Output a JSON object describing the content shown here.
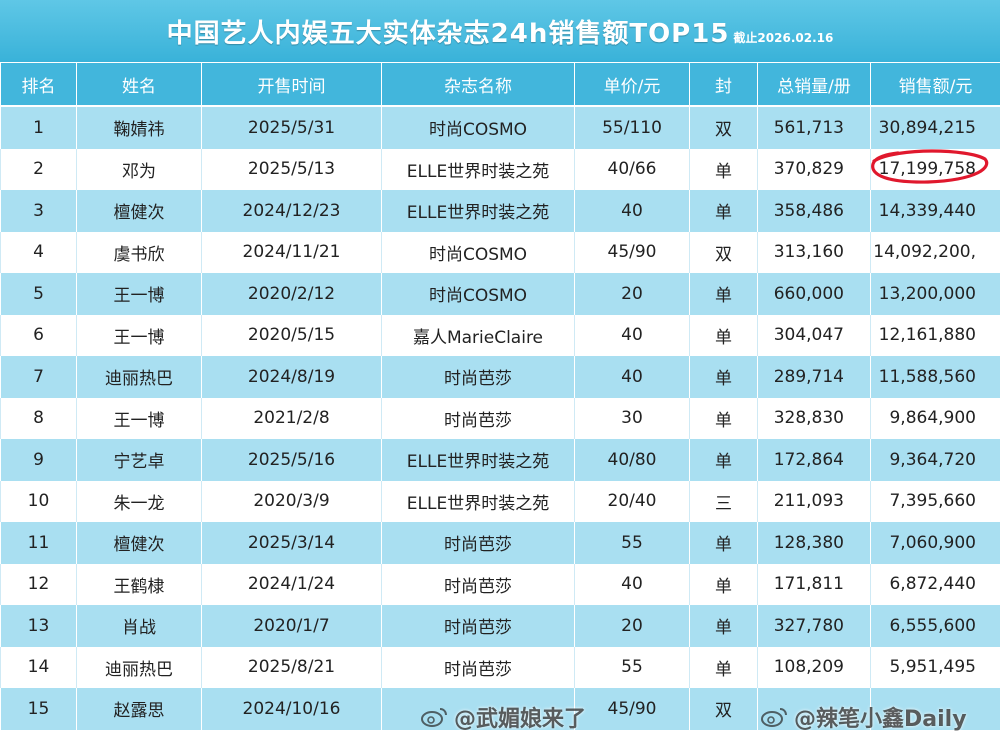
{
  "title": "中国艺人内娱五大实体杂志24h销售额TOP15",
  "subtitle_date": "截止2026.02.16",
  "headers": [
    "排名",
    "姓名",
    "开售时间",
    "杂志名称",
    "单价/元",
    "封",
    "总销量/册",
    "销售额/元"
  ],
  "rows": [
    [
      "1",
      "鞠婧祎",
      "2025/5/31",
      "时尚COSMO",
      "55/110",
      "双",
      "561,713",
      "30,894,215"
    ],
    [
      "2",
      "邓为",
      "2025/5/13",
      "ELLE世界时装之苑",
      "40/66",
      "单",
      "370,829",
      "17,199,758"
    ],
    [
      "3",
      "檀健次",
      "2024/12/23",
      "ELLE世界时装之苑",
      "40",
      "单",
      "358,486",
      "14,339,440"
    ],
    [
      "4",
      "虞书欣",
      "2024/11/21",
      "时尚COSMO",
      "45/90",
      "双",
      "313,160",
      "14,092,200,"
    ],
    [
      "5",
      "王一博",
      "2020/2/12",
      "时尚COSMO",
      "20",
      "单",
      "660,000",
      "13,200,000"
    ],
    [
      "6",
      "王一博",
      "2020/5/15",
      "嘉人MarieClaire",
      "40",
      "单",
      "304,047",
      "12,161,880"
    ],
    [
      "7",
      "迪丽热巴",
      "2024/8/19",
      "时尚芭莎",
      "40",
      "单",
      "289,714",
      "11,588,560"
    ],
    [
      "8",
      "王一博",
      "2021/2/8",
      "时尚芭莎",
      "30",
      "单",
      "328,830",
      "9,864,900"
    ],
    [
      "9",
      "宁艺卓",
      "2025/5/16",
      "ELLE世界时装之苑",
      "40/80",
      "单",
      "172,864",
      "9,364,720"
    ],
    [
      "10",
      "朱一龙",
      "2020/3/9",
      "ELLE世界时装之苑",
      "20/40",
      "三",
      "211,093",
      "7,395,660"
    ],
    [
      "11",
      "檀健次",
      "2025/3/14",
      "时尚芭莎",
      "55",
      "单",
      "128,380",
      "7,060,900"
    ],
    [
      "12",
      "王鹤棣",
      "2024/1/24",
      "时尚芭莎",
      "40",
      "单",
      "171,811",
      "6,872,440"
    ],
    [
      "13",
      "肖战",
      "2020/1/7",
      "时尚芭莎",
      "20",
      "单",
      "327,780",
      "6,555,600"
    ],
    [
      "14",
      "迪丽热巴",
      "2025/8/21",
      "时尚芭莎",
      "55",
      "单",
      "108,209",
      "5,951,495"
    ],
    [
      "15",
      "赵露思",
      "2024/10/16",
      "",
      "45/90",
      "双",
      "",
      ""
    ]
  ],
  "watermarks": [
    {
      "text": "@武媚娘来了",
      "icon": "weibo-icon"
    },
    {
      "text": "@辣笔小鑫Daily",
      "icon": "weibo-icon"
    }
  ],
  "colors": {
    "header": "#42b6dc",
    "stripe": "#a9dff1",
    "highlight_circle": "#e0182d"
  }
}
